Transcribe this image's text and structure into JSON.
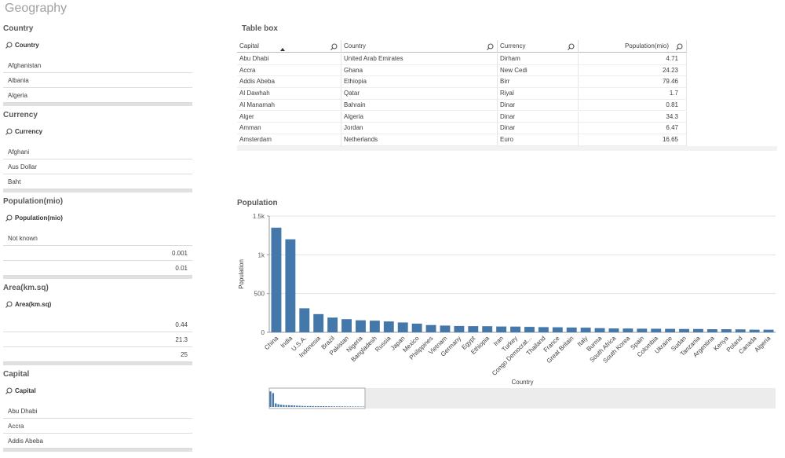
{
  "header": {
    "title": "Geography"
  },
  "filters": [
    {
      "title": "Country",
      "search": "Country",
      "items": [
        "Afghanistan",
        "Albania",
        "Algeria"
      ]
    },
    {
      "title": "Currency",
      "search": "Currency",
      "items": [
        "Afghani",
        "Aus Dollar",
        "Baht"
      ]
    },
    {
      "title": "Population(mio)",
      "search": "Population(mio)",
      "items": [
        "Not known",
        0.001,
        0.01
      ]
    },
    {
      "title": "Area(km.sq)",
      "search": "Area(km.sq)",
      "items": [
        0.44,
        21.3,
        25
      ]
    },
    {
      "title": "Capital",
      "search": "Capital",
      "items": [
        "Abu Dhabi",
        "Accra",
        "Addis Abeba"
      ]
    }
  ],
  "table": {
    "title": "Table box",
    "columns": [
      "Capital",
      "Country",
      "Currency",
      "Population(mio)"
    ],
    "rows": [
      [
        "Abu Dhabi",
        "United Arab Emirates",
        "Dirham",
        4.71
      ],
      [
        "Accra",
        "Ghana",
        "New Cedi",
        24.23
      ],
      [
        "Addis Abeba",
        "Ethiopia",
        "Birr",
        79.46
      ],
      [
        "Al Dawhah",
        "Qatar",
        "Riyal",
        1.7
      ],
      [
        "Al Manamah",
        "Bahrain",
        "Dinar",
        0.81
      ],
      [
        "Alger",
        "Algeria",
        "Dinar",
        34.3
      ],
      [
        "Amman",
        "Jordan",
        "Dinar",
        6.47
      ],
      [
        "Amsterdam",
        "Netherlands",
        "Euro",
        16.65
      ]
    ]
  },
  "chart_data": {
    "type": "bar",
    "title": "Population",
    "x_label": "Country",
    "y_label": "Population",
    "categories": [
      "China",
      "India",
      "U.S.A.",
      "Indonesia",
      "Brazil",
      "Pakistan",
      "Nigeria",
      "Bangladesh",
      "Russia",
      "Japan",
      "Mexico",
      "Philippines",
      "Vietnam",
      "Germany",
      "Egypt",
      "Ethiopia",
      "Iran",
      "Turkey",
      "Congo Democrat...",
      "Thailand",
      "France",
      "Great Britain",
      "Italy",
      "Burma",
      "South Africa",
      "South Korea",
      "Spain",
      "Colombia",
      "Ukraine",
      "Sudan",
      "Tanzania",
      "Argentina",
      "Kenya",
      "Poland",
      "Canada",
      "Algeria"
    ],
    "values": [
      1350,
      1200,
      310,
      235,
      190,
      170,
      155,
      150,
      140,
      127,
      112,
      94,
      87,
      82,
      80,
      79,
      75,
      74,
      70,
      67,
      65,
      62,
      60,
      54,
      50,
      49,
      47,
      46,
      45,
      43,
      43,
      40,
      40,
      38,
      34,
      34
    ],
    "color": "#4477aa",
    "ylim": [
      0,
      1500
    ],
    "yticks": [
      0,
      500,
      {
        "value": 1000,
        "label": "1k"
      },
      {
        "value": 1500,
        "label": "1.5k"
      }
    ],
    "grid": true
  }
}
